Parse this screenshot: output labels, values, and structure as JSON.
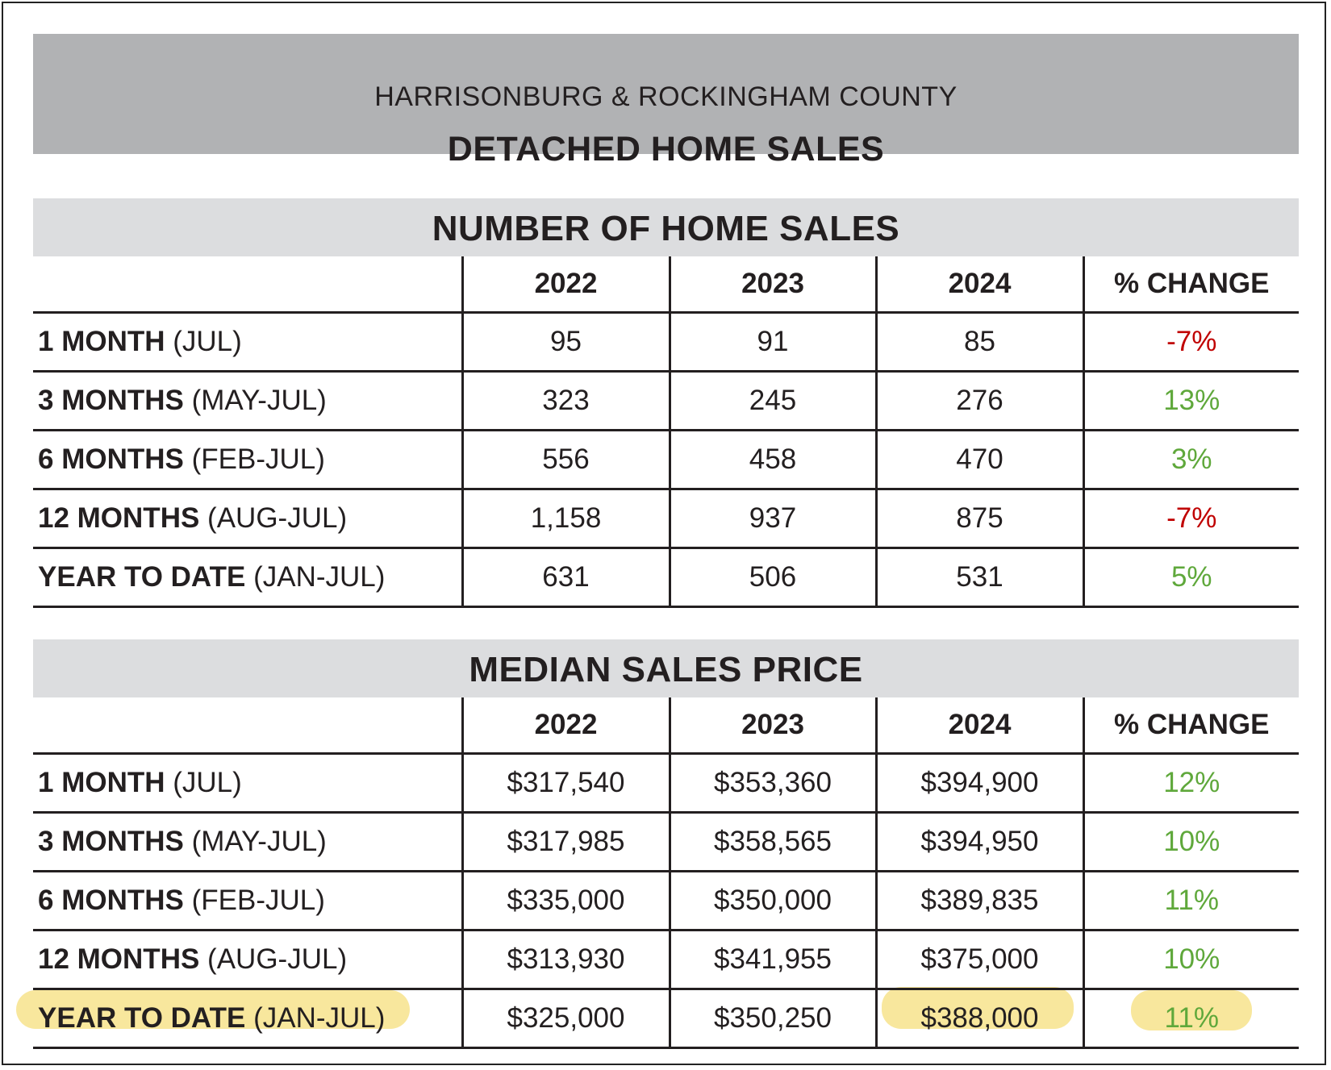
{
  "header": {
    "subtitle": "HARRISONBURG & ROCKINGHAM COUNTY",
    "title": "DETACHED HOME SALES"
  },
  "colors": {
    "negative": "#c00000",
    "positive": "#5fa83b",
    "highlight": "#f7e38c"
  },
  "sales": {
    "heading": "NUMBER OF HOME SALES",
    "columns": [
      "2022",
      "2023",
      "2024",
      "% CHANGE"
    ],
    "rows": [
      {
        "period": "1 MONTH",
        "range": "(JUL)",
        "values": [
          "95",
          "91",
          "85"
        ],
        "change": "-7%"
      },
      {
        "period": "3 MONTHS",
        "range": "(MAY-JUL)",
        "values": [
          "323",
          "245",
          "276"
        ],
        "change": "13%"
      },
      {
        "period": "6 MONTHS",
        "range": "(FEB-JUL)",
        "values": [
          "556",
          "458",
          "470"
        ],
        "change": "3%"
      },
      {
        "period": "12 MONTHS",
        "range": "(AUG-JUL)",
        "values": [
          "1,158",
          "937",
          "875"
        ],
        "change": "-7%"
      },
      {
        "period": "YEAR TO DATE",
        "range": "(JAN-JUL)",
        "values": [
          "631",
          "506",
          "531"
        ],
        "change": "5%"
      }
    ]
  },
  "prices": {
    "heading": "MEDIAN SALES PRICE",
    "columns": [
      "2022",
      "2023",
      "2024",
      "% CHANGE"
    ],
    "rows": [
      {
        "period": "1 MONTH",
        "range": "(JUL)",
        "values": [
          "$317,540",
          "$353,360",
          "$394,900"
        ],
        "change": "12%"
      },
      {
        "period": "3 MONTHS",
        "range": "(MAY-JUL)",
        "values": [
          "$317,985",
          "$358,565",
          "$394,950"
        ],
        "change": "10%"
      },
      {
        "period": "6 MONTHS",
        "range": "(FEB-JUL)",
        "values": [
          "$335,000",
          "$350,000",
          "$389,835"
        ],
        "change": "11%"
      },
      {
        "period": "12 MONTHS",
        "range": "(AUG-JUL)",
        "values": [
          "$313,930",
          "$341,955",
          "$375,000"
        ],
        "change": "10%"
      },
      {
        "period": "YEAR TO DATE",
        "range": "(JAN-JUL)",
        "values": [
          "$325,000",
          "$350,250",
          "$388,000"
        ],
        "change": "11%"
      }
    ]
  }
}
